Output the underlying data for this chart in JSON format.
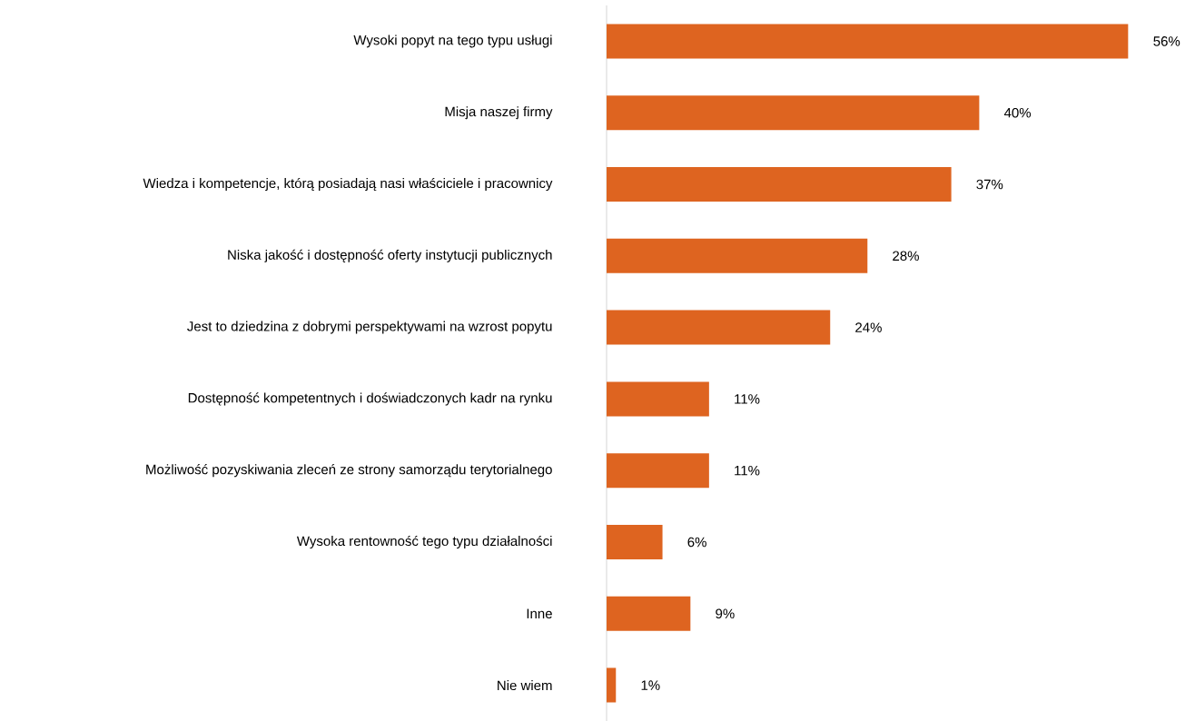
{
  "chart_data": {
    "type": "bar",
    "orientation": "horizontal",
    "categories": [
      "Wysoki popyt na tego typu usługi",
      "Misja naszej firmy",
      "Wiedza i kompetencje, którą posiadają nasi właściciele i pracownicy",
      "Niska jakość i dostępność oferty instytucji publicznych",
      "Jest to dziedzina z dobrymi perspektywami na wzrost popytu",
      "Dostępność kompetentnych i doświadczonych kadr na rynku",
      "Możliwość pozyskiwania zleceń ze strony samorządu terytorialnego",
      "Wysoka rentowność tego typu działalności",
      "Inne",
      "Nie wiem"
    ],
    "values": [
      56,
      40,
      37,
      28,
      24,
      11,
      11,
      6,
      9,
      1
    ],
    "value_labels": [
      "56%",
      "40%",
      "37%",
      "28%",
      "24%",
      "11%",
      "11%",
      "6%",
      "9%",
      "1%"
    ],
    "color": "#de6420"
  }
}
